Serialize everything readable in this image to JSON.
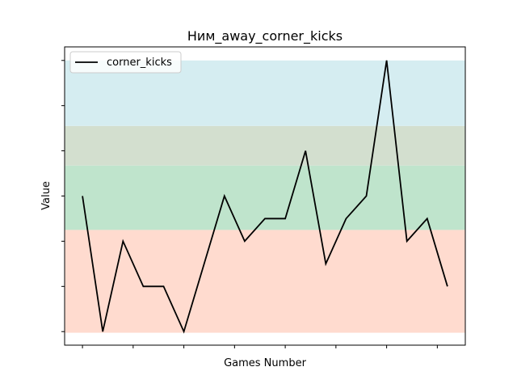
{
  "chart_data": {
    "type": "line",
    "title": "Ним_away_corner_kicks",
    "xlabel": "Games Number",
    "ylabel": "Value",
    "x": [
      0,
      1,
      2,
      3,
      4,
      5,
      6,
      7,
      8,
      9,
      10,
      11,
      12,
      13,
      14,
      15,
      16,
      17,
      18
    ],
    "series": [
      {
        "name": "corner_kicks",
        "color": "#000000",
        "values": [
          6,
          0,
          4,
          2,
          2,
          0,
          3,
          6,
          4,
          5,
          5,
          8,
          3,
          5,
          6,
          12,
          4,
          5,
          2
        ]
      }
    ],
    "xlim": [
      -0.88,
      18.88
    ],
    "ylim": [
      -0.6,
      12.6
    ],
    "bands": [
      {
        "from": -0.05,
        "to": 4.5,
        "color": "#ffdbcf"
      },
      {
        "from": 4.5,
        "to": 7.35,
        "color": "#bfe4cc"
      },
      {
        "from": 7.35,
        "to": 9.1,
        "color": "#d3dfcf"
      },
      {
        "from": 9.1,
        "to": 12.0,
        "color": "#d5edf1"
      }
    ],
    "legend": {
      "position": "top-left"
    },
    "grid": false
  }
}
